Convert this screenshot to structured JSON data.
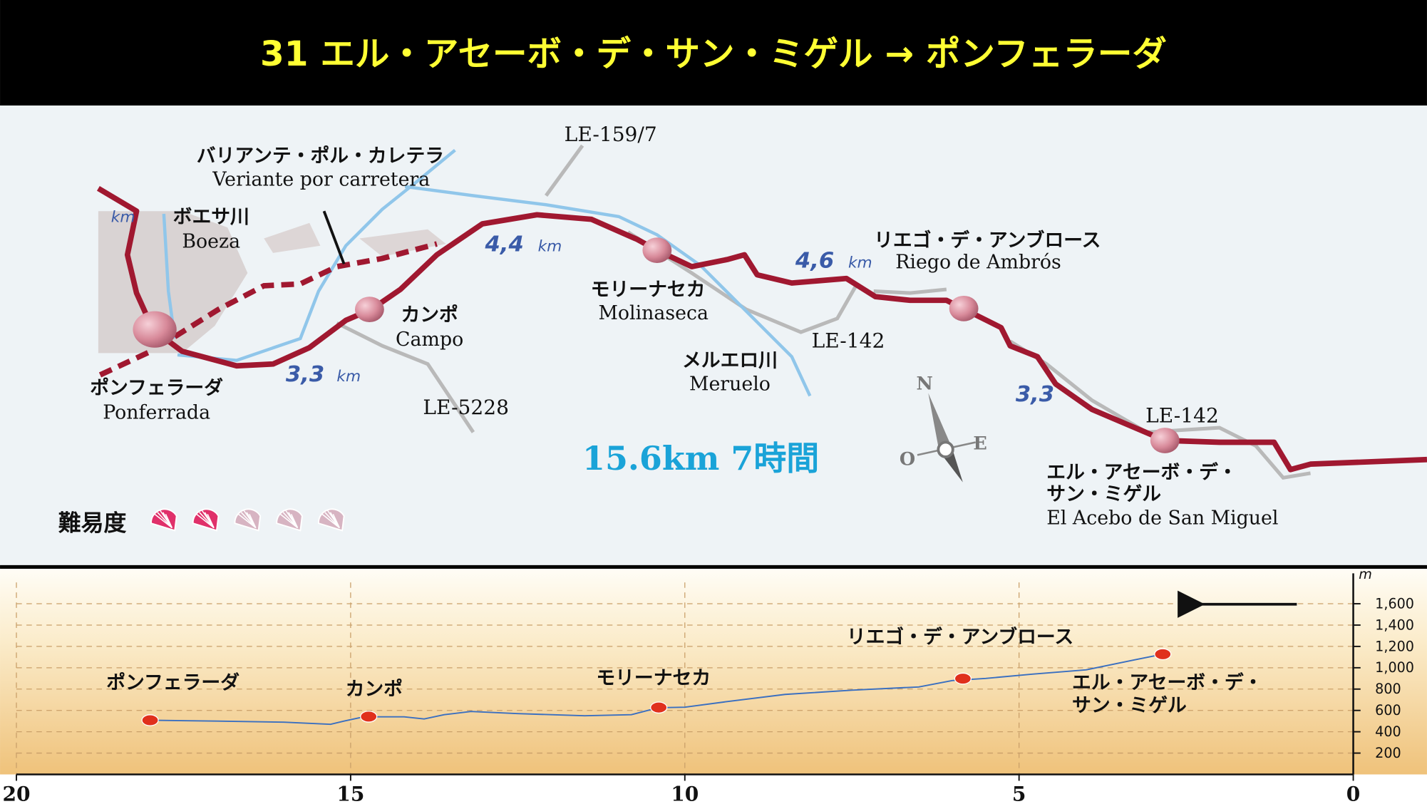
{
  "header": {
    "title": "31 エル・アセーボ・デ・サン・ミゲル → ポンフェラーダ"
  },
  "map": {
    "places": [
      {
        "name_ja": [
          "ポンフェラーダ"
        ],
        "name": "Ponferrada"
      },
      {
        "name_ja": [
          "カンポ"
        ],
        "name": "Campo"
      },
      {
        "name_ja": [
          "モリーナセカ"
        ],
        "name": "Molinaseca"
      },
      {
        "name_ja": [
          "リエゴ・デ・アンブロース"
        ],
        "name": "Riego de Ambrós"
      },
      {
        "name_ja": [
          "エル・アセーボ・デ・",
          "サン・ミゲル"
        ],
        "name": "El Acebo de San Miguel"
      }
    ],
    "rivers": [
      {
        "name_ja": "ボエサ川",
        "name": "Boeza"
      },
      {
        "name_ja": "メルエロ川",
        "name": "Meruelo"
      }
    ],
    "variant": {
      "name_ja": "バリアンテ・ポル・カレテラ",
      "name": "Veriante por carretera"
    },
    "roads": [
      "LE-159/7",
      "LE-142",
      "LE-5228",
      "LE-142"
    ],
    "distances": [
      {
        "value": "3,3",
        "unit": "km"
      },
      {
        "value": "4,4",
        "unit": "km"
      },
      {
        "value": "4,6",
        "unit": "km"
      },
      {
        "value": "3,3"
      }
    ],
    "edge_unit": "km",
    "summary": "15.6km 7時間",
    "compass": {
      "n": "N",
      "w": "O",
      "e": "E"
    },
    "difficulty": {
      "label": "難易度",
      "level": 2,
      "max": 5
    }
  },
  "chart_data": {
    "type": "line",
    "unit": "m",
    "xlim": [
      20,
      0
    ],
    "xticks": [
      20,
      15,
      10,
      5,
      0
    ],
    "ylim": [
      0,
      1800
    ],
    "yticks": [
      200,
      400,
      600,
      800,
      {
        "value": 1000,
        "label": "1,000"
      },
      {
        "value": 1200,
        "label": "1,200"
      },
      {
        "value": 1400,
        "label": "1,400"
      },
      {
        "value": 1600,
        "label": "1,600"
      }
    ],
    "grid": true,
    "x": [
      18,
      17,
      16,
      15.3,
      15.1,
      14.8,
      14.2,
      13.9,
      13.6,
      13.2,
      12.5,
      11.5,
      10.8,
      10.4,
      10,
      9.4,
      8.5,
      7.5,
      6.5,
      6,
      5.5,
      4.8,
      4,
      3.3,
      2.85
    ],
    "series": [
      {
        "color": "#3a6fc0",
        "values": [
          508,
          500,
          490,
          470,
          500,
          540,
          540,
          520,
          560,
          590,
          570,
          550,
          560,
          625,
          630,
          680,
          750,
          790,
          820,
          880,
          900,
          940,
          980,
          1070,
          1127
        ]
      }
    ],
    "marker_color": "#e0301c",
    "points": [
      {
        "label": [
          "ポンフェラーダ"
        ],
        "x": 18,
        "y": 508
      },
      {
        "label": [
          "カンポ"
        ],
        "x": 14.73,
        "y": 542
      },
      {
        "label": [
          "モリーナセカ"
        ],
        "x": 10.39,
        "y": 627
      },
      {
        "label": [
          "リエゴ・デ・アンブロース"
        ],
        "x": 5.84,
        "y": 898
      },
      {
        "label": [
          "エル・アセーボ・デ・",
          "サン・ミゲル"
        ],
        "x": 2.85,
        "y": 1127
      }
    ]
  }
}
